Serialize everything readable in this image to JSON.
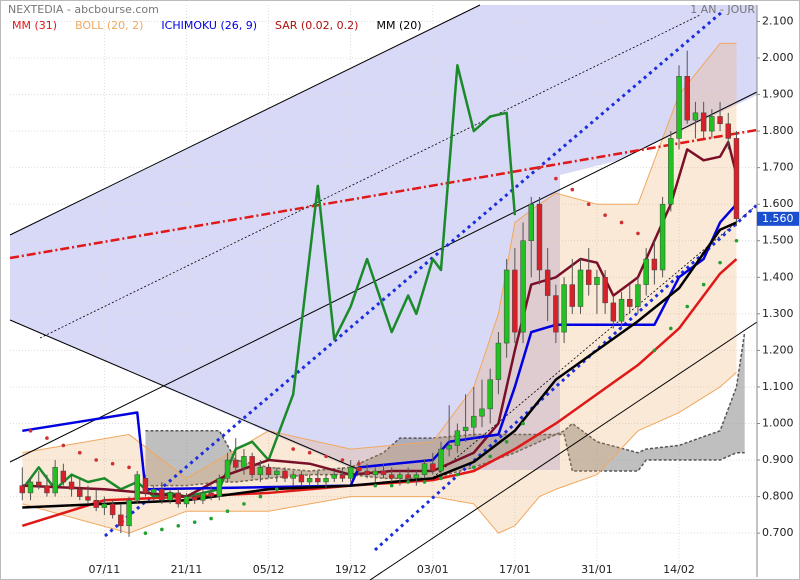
{
  "chart_data": {
    "type": "candlestick",
    "title": "NEXTEDIA - abcbourse.com",
    "period": "1 AN - JOUR",
    "xlim": [
      -1.5,
      89.5
    ],
    "ylim": [
      0.58,
      2.145
    ],
    "yticks": [
      {
        "value": 0.7,
        "label": "0.700"
      },
      {
        "value": 0.8,
        "label": "0.800"
      },
      {
        "value": 0.9,
        "label": "0.900"
      },
      {
        "value": 1.0,
        "label": "1.000"
      },
      {
        "value": 1.1,
        "label": "1.100"
      },
      {
        "value": 1.2,
        "label": "1.200"
      },
      {
        "value": 1.3,
        "label": "1.300"
      },
      {
        "value": 1.4,
        "label": "1.400"
      },
      {
        "value": 1.5,
        "label": "1.500"
      },
      {
        "value": 1.6,
        "label": "1.600"
      },
      {
        "value": 1.7,
        "label": "1.700"
      },
      {
        "value": 1.8,
        "label": "1.800"
      },
      {
        "value": 1.9,
        "label": "1.900"
      },
      {
        "value": 2.0,
        "label": "2.000"
      },
      {
        "value": 2.1,
        "label": "2.100"
      }
    ],
    "xticks": [
      {
        "value": 10,
        "label": "07/11"
      },
      {
        "value": 20,
        "label": "21/11"
      },
      {
        "value": 30,
        "label": "05/12"
      },
      {
        "value": 40,
        "label": "19/12"
      },
      {
        "value": 50,
        "label": "03/01"
      },
      {
        "value": 60,
        "label": "17/01"
      },
      {
        "value": 70,
        "label": "31/01"
      },
      {
        "value": 80,
        "label": "14/02"
      }
    ],
    "grid": true,
    "last_price": {
      "value": 1.56,
      "label": "1.560"
    },
    "candles": {
      "up_color": "#22c022",
      "down_color": "#d8202a",
      "x": [
        0,
        1,
        2,
        3,
        4,
        5,
        6,
        7,
        8,
        9,
        10,
        11,
        12,
        13,
        14,
        15,
        16,
        17,
        18,
        19,
        20,
        21,
        22,
        23,
        24,
        25,
        26,
        27,
        28,
        29,
        30,
        31,
        32,
        33,
        34,
        35,
        36,
        37,
        38,
        39,
        40,
        41,
        42,
        43,
        44,
        45,
        46,
        47,
        48,
        49,
        50,
        51,
        52,
        53,
        54,
        55,
        56,
        57,
        58,
        59,
        60,
        61,
        62,
        63,
        64,
        65,
        66,
        67,
        68,
        69,
        70,
        71,
        72,
        73,
        74,
        75,
        76,
        77,
        78,
        79,
        80,
        81,
        82,
        83,
        84,
        85,
        86,
        87
      ],
      "open": [
        0.83,
        0.81,
        0.84,
        0.83,
        0.81,
        0.87,
        0.84,
        0.82,
        0.8,
        0.79,
        0.77,
        0.78,
        0.75,
        0.72,
        0.79,
        0.85,
        0.81,
        0.82,
        0.79,
        0.81,
        0.78,
        0.8,
        0.79,
        0.81,
        0.8,
        0.85,
        0.9,
        0.88,
        0.91,
        0.86,
        0.88,
        0.86,
        0.87,
        0.85,
        0.86,
        0.84,
        0.85,
        0.84,
        0.85,
        0.86,
        0.85,
        0.88,
        0.87,
        0.86,
        0.87,
        0.86,
        0.85,
        0.86,
        0.85,
        0.86,
        0.89,
        0.87,
        0.93,
        0.94,
        0.98,
        0.99,
        1.02,
        1.04,
        1.12,
        1.22,
        1.42,
        1.25,
        1.5,
        1.6,
        1.42,
        1.35,
        1.25,
        1.38,
        1.32,
        1.42,
        1.38,
        1.4,
        1.33,
        1.28,
        1.34,
        1.32,
        1.38,
        1.45,
        1.42,
        1.6,
        1.78,
        1.95,
        1.83,
        1.85,
        1.8,
        1.84,
        1.82,
        1.78
      ],
      "high": [
        0.88,
        0.85,
        0.87,
        0.86,
        0.9,
        0.89,
        0.86,
        0.85,
        0.83,
        0.82,
        0.8,
        0.79,
        0.78,
        0.8,
        0.87,
        0.86,
        0.83,
        0.84,
        0.82,
        0.82,
        0.81,
        0.81,
        0.82,
        0.83,
        0.86,
        0.92,
        0.96,
        0.93,
        0.92,
        0.9,
        0.89,
        0.88,
        0.88,
        0.87,
        0.87,
        0.86,
        0.87,
        0.86,
        0.87,
        0.88,
        0.9,
        0.9,
        0.89,
        0.88,
        0.89,
        0.88,
        0.87,
        0.88,
        0.87,
        0.9,
        0.92,
        0.95,
        1.05,
        1.0,
        1.08,
        1.1,
        1.12,
        1.15,
        1.25,
        1.45,
        1.48,
        1.55,
        1.62,
        1.62,
        1.48,
        1.38,
        1.4,
        1.45,
        1.45,
        1.48,
        1.42,
        1.42,
        1.35,
        1.36,
        1.38,
        1.4,
        1.48,
        1.5,
        1.62,
        1.8,
        1.98,
        2.02,
        1.88,
        1.88,
        1.86,
        1.88,
        1.85,
        1.8
      ],
      "low": [
        0.79,
        0.79,
        0.82,
        0.8,
        0.8,
        0.83,
        0.8,
        0.79,
        0.78,
        0.76,
        0.75,
        0.74,
        0.7,
        0.69,
        0.78,
        0.8,
        0.79,
        0.78,
        0.78,
        0.77,
        0.77,
        0.78,
        0.78,
        0.79,
        0.79,
        0.84,
        0.87,
        0.86,
        0.85,
        0.84,
        0.85,
        0.84,
        0.84,
        0.83,
        0.83,
        0.83,
        0.83,
        0.82,
        0.84,
        0.84,
        0.84,
        0.86,
        0.85,
        0.84,
        0.85,
        0.84,
        0.83,
        0.84,
        0.83,
        0.85,
        0.86,
        0.86,
        0.91,
        0.92,
        0.95,
        0.96,
        0.99,
        1.0,
        1.08,
        1.18,
        1.22,
        1.22,
        1.4,
        1.38,
        1.28,
        1.22,
        1.22,
        1.3,
        1.3,
        1.35,
        1.3,
        1.3,
        1.26,
        1.26,
        1.3,
        1.3,
        1.35,
        1.38,
        1.4,
        1.58,
        1.75,
        1.82,
        1.78,
        1.78,
        1.78,
        1.8,
        1.75,
        1.54
      ],
      "close": [
        0.81,
        0.84,
        0.83,
        0.81,
        0.88,
        0.84,
        0.82,
        0.8,
        0.79,
        0.77,
        0.78,
        0.75,
        0.72,
        0.79,
        0.86,
        0.81,
        0.82,
        0.79,
        0.81,
        0.78,
        0.8,
        0.79,
        0.81,
        0.8,
        0.85,
        0.9,
        0.88,
        0.91,
        0.86,
        0.88,
        0.86,
        0.87,
        0.85,
        0.86,
        0.84,
        0.85,
        0.84,
        0.85,
        0.86,
        0.85,
        0.88,
        0.87,
        0.86,
        0.87,
        0.86,
        0.85,
        0.86,
        0.85,
        0.86,
        0.89,
        0.87,
        0.93,
        0.94,
        0.98,
        0.99,
        1.02,
        1.04,
        1.12,
        1.22,
        1.42,
        1.25,
        1.5,
        1.6,
        1.42,
        1.35,
        1.25,
        1.38,
        1.32,
        1.42,
        1.38,
        1.4,
        1.33,
        1.28,
        1.34,
        1.32,
        1.38,
        1.45,
        1.42,
        1.6,
        1.78,
        1.95,
        1.83,
        1.85,
        1.8,
        1.84,
        1.82,
        1.78,
        1.56
      ]
    },
    "series": [
      {
        "name": "MM (31)",
        "color": "#e01818",
        "x": [
          0,
          10,
          20,
          30,
          40,
          50,
          55,
          60,
          65,
          70,
          75,
          80,
          85,
          87
        ],
        "values": [
          0.72,
          0.79,
          0.8,
          0.81,
          0.83,
          0.845,
          0.87,
          0.93,
          1.0,
          1.08,
          1.16,
          1.26,
          1.41,
          1.45
        ]
      },
      {
        "name": "BOLL (20, 2)",
        "color": "#f0a860",
        "x": [
          0,
          13,
          20,
          30,
          40,
          50,
          55,
          58,
          60,
          63,
          65,
          70,
          75,
          80,
          85,
          87
        ],
        "upper": [
          0.92,
          0.97,
          0.85,
          0.98,
          0.93,
          0.95,
          1.1,
          1.3,
          1.55,
          1.6,
          1.63,
          1.6,
          1.6,
          1.9,
          2.04,
          2.04
        ],
        "lower": [
          0.78,
          0.7,
          0.76,
          0.76,
          0.8,
          0.8,
          0.78,
          0.7,
          0.72,
          0.8,
          0.82,
          0.86,
          0.98,
          1.03,
          1.1,
          1.14
        ]
      },
      {
        "name": "ICHIMOKU (26, 9)",
        "color": "#0000e0",
        "x": [
          0,
          14,
          15,
          40,
          41,
          50,
          52,
          58,
          60,
          62,
          65,
          77,
          80,
          83,
          85,
          87
        ],
        "values": [
          0.98,
          1.03,
          0.82,
          0.83,
          0.88,
          0.9,
          0.95,
          0.97,
          1.1,
          1.25,
          1.27,
          1.27,
          1.4,
          1.45,
          1.55,
          1.6
        ],
        "lines": [
          {
            "color": "#1a8a2a",
            "x": [
              0,
              2,
              4,
              6,
              8,
              10,
              12,
              14,
              16,
              18,
              20,
              22,
              24,
              26,
              28,
              30,
              33,
              36,
              38,
              40,
              42,
              45,
              47,
              48,
              50,
              51,
              53,
              55,
              57,
              59,
              60
            ],
            "values": [
              0.82,
              0.88,
              0.82,
              0.86,
              0.84,
              0.85,
              0.82,
              0.84,
              0.8,
              0.81,
              0.8,
              0.81,
              0.82,
              0.93,
              0.95,
              0.9,
              1.08,
              1.65,
              1.23,
              1.32,
              1.45,
              1.25,
              1.35,
              1.3,
              1.45,
              1.42,
              1.98,
              1.8,
              1.84,
              1.85,
              1.57
            ]
          },
          {
            "color": "#7a1028",
            "x": [
              0,
              10,
              20,
              25,
              30,
              35,
              40,
              45,
              50,
              55,
              58,
              60,
              62,
              65,
              68,
              70,
              72,
              75,
              77,
              79,
              81,
              83,
              85,
              86,
              87
            ],
            "values": [
              0.83,
              0.82,
              0.8,
              0.86,
              0.9,
              0.89,
              0.86,
              0.87,
              0.87,
              0.92,
              1.0,
              1.2,
              1.38,
              1.4,
              1.45,
              1.44,
              1.35,
              1.4,
              1.5,
              1.6,
              1.75,
              1.72,
              1.73,
              1.77,
              1.68
            ]
          }
        ],
        "cloud": {
          "color": "#8a8a8a",
          "x": [
            15,
            20,
            24,
            26,
            30,
            35,
            40,
            44,
            46,
            50,
            55,
            60,
            66,
            67,
            70,
            75,
            76,
            80,
            85,
            87,
            88
          ],
          "a": [
            0.83,
            0.83,
            0.84,
            0.84,
            0.85,
            0.86,
            0.86,
            0.85,
            0.85,
            0.85,
            0.88,
            0.92,
            0.98,
            1.0,
            0.95,
            0.92,
            0.93,
            0.94,
            0.98,
            1.1,
            1.25
          ],
          "b": [
            0.98,
            0.98,
            0.98,
            0.9,
            0.88,
            0.87,
            0.88,
            0.92,
            0.96,
            0.96,
            0.97,
            0.97,
            0.97,
            0.87,
            0.87,
            0.87,
            0.9,
            0.9,
            0.9,
            0.92,
            0.92
          ]
        }
      },
      {
        "name": "SAR (0.02, 0.2)",
        "color": "#b01010",
        "above_color": "#d03030",
        "below_color": "#22a030",
        "x": [
          1,
          3,
          5,
          7,
          9,
          11,
          13,
          15,
          17,
          19,
          21,
          23,
          25,
          27,
          29,
          31,
          33,
          35,
          37,
          39,
          41,
          43,
          45,
          47,
          49,
          51,
          53,
          55,
          57,
          59,
          61,
          63,
          65,
          67,
          69,
          71,
          73,
          75,
          77,
          79,
          81,
          83,
          85,
          87
        ],
        "values": [
          0.98,
          0.96,
          0.94,
          0.92,
          0.9,
          0.89,
          0.88,
          0.7,
          0.71,
          0.72,
          0.73,
          0.74,
          0.76,
          0.78,
          0.8,
          0.82,
          0.93,
          0.92,
          0.91,
          0.9,
          0.89,
          0.83,
          0.83,
          0.84,
          0.84,
          0.85,
          0.86,
          0.88,
          0.91,
          0.95,
          1.0,
          1.7,
          1.67,
          1.64,
          1.6,
          1.57,
          1.55,
          1.52,
          1.2,
          1.26,
          1.32,
          1.38,
          1.44,
          1.5
        ]
      },
      {
        "name": "MM (20)",
        "color": "#000000",
        "x": [
          0,
          10,
          20,
          30,
          40,
          50,
          55,
          60,
          65,
          70,
          75,
          80,
          85,
          87
        ],
        "values": [
          0.77,
          0.78,
          0.79,
          0.82,
          0.83,
          0.85,
          0.895,
          0.98,
          1.12,
          1.2,
          1.28,
          1.37,
          1.53,
          1.55
        ]
      }
    ]
  }
}
